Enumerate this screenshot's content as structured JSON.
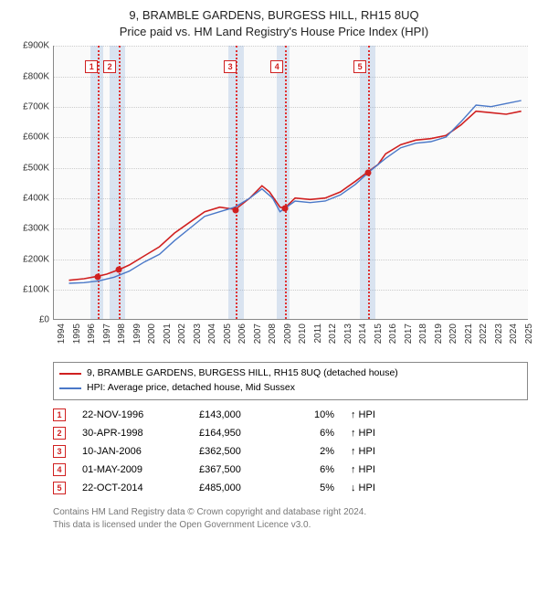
{
  "title_line1": "9, BRAMBLE GARDENS, BURGESS HILL, RH15 8UQ",
  "title_line2": "Price paid vs. HM Land Registry's House Price Index (HPI)",
  "chart": {
    "type": "line",
    "x_min": 1994,
    "x_max": 2025.5,
    "y_min": 0,
    "y_max": 900000,
    "y_ticks": [
      0,
      100000,
      200000,
      300000,
      400000,
      500000,
      600000,
      700000,
      800000,
      900000
    ],
    "y_tick_labels": [
      "£0",
      "£100K",
      "£200K",
      "£300K",
      "£400K",
      "£500K",
      "£600K",
      "£700K",
      "£800K",
      "£900K"
    ],
    "x_ticks": [
      1994,
      1995,
      1996,
      1997,
      1998,
      1999,
      2000,
      2001,
      2002,
      2003,
      2004,
      2005,
      2006,
      2007,
      2008,
      2009,
      2010,
      2011,
      2012,
      2013,
      2014,
      2015,
      2016,
      2017,
      2018,
      2019,
      2020,
      2021,
      2022,
      2023,
      2024,
      2025
    ],
    "background_color": "#fafafa",
    "grid_color": "#cccccc",
    "shaded_bands": [
      {
        "start": 1996.4,
        "end": 1997.3
      },
      {
        "start": 1997.7,
        "end": 1998.7
      },
      {
        "start": 2005.6,
        "end": 2006.6
      },
      {
        "start": 2008.8,
        "end": 2009.6
      },
      {
        "start": 2014.3,
        "end": 2015.3
      }
    ],
    "sale_vlines": [
      1996.9,
      1998.33,
      2006.03,
      2009.33,
      2014.81
    ],
    "marker_boxes": [
      {
        "n": "1",
        "x": 1996.5
      },
      {
        "n": "2",
        "x": 1997.7
      },
      {
        "n": "3",
        "x": 2005.7
      },
      {
        "n": "4",
        "x": 2008.8
      },
      {
        "n": "5",
        "x": 2014.3
      }
    ],
    "series": [
      {
        "name": "price_paid",
        "color": "#d02020",
        "width": 1.6,
        "points": [
          [
            1995,
            130000
          ],
          [
            1996,
            135000
          ],
          [
            1996.9,
            143000
          ],
          [
            1997.5,
            150000
          ],
          [
            1998.33,
            164950
          ],
          [
            1999,
            180000
          ],
          [
            2000,
            210000
          ],
          [
            2001,
            240000
          ],
          [
            2002,
            285000
          ],
          [
            2003,
            320000
          ],
          [
            2004,
            355000
          ],
          [
            2005,
            370000
          ],
          [
            2006.03,
            362500
          ],
          [
            2007,
            400000
          ],
          [
            2007.8,
            440000
          ],
          [
            2008.3,
            420000
          ],
          [
            2009,
            370000
          ],
          [
            2009.33,
            367500
          ],
          [
            2010,
            400000
          ],
          [
            2011,
            395000
          ],
          [
            2012,
            400000
          ],
          [
            2013,
            420000
          ],
          [
            2014,
            455000
          ],
          [
            2014.81,
            485000
          ],
          [
            2015.5,
            510000
          ],
          [
            2016,
            545000
          ],
          [
            2017,
            575000
          ],
          [
            2018,
            590000
          ],
          [
            2019,
            595000
          ],
          [
            2020,
            605000
          ],
          [
            2021,
            640000
          ],
          [
            2022,
            685000
          ],
          [
            2023,
            680000
          ],
          [
            2024,
            675000
          ],
          [
            2025,
            685000
          ]
        ]
      },
      {
        "name": "hpi",
        "color": "#4a78c8",
        "width": 1.4,
        "points": [
          [
            1995,
            120000
          ],
          [
            1996,
            122000
          ],
          [
            1997,
            128000
          ],
          [
            1998,
            140000
          ],
          [
            1999,
            160000
          ],
          [
            2000,
            190000
          ],
          [
            2001,
            215000
          ],
          [
            2002,
            260000
          ],
          [
            2003,
            300000
          ],
          [
            2004,
            340000
          ],
          [
            2005,
            355000
          ],
          [
            2006,
            370000
          ],
          [
            2007,
            400000
          ],
          [
            2007.8,
            430000
          ],
          [
            2008.5,
            400000
          ],
          [
            2009,
            355000
          ],
          [
            2010,
            390000
          ],
          [
            2011,
            385000
          ],
          [
            2012,
            390000
          ],
          [
            2013,
            410000
          ],
          [
            2014,
            445000
          ],
          [
            2015,
            490000
          ],
          [
            2016,
            530000
          ],
          [
            2017,
            565000
          ],
          [
            2018,
            580000
          ],
          [
            2019,
            585000
          ],
          [
            2020,
            600000
          ],
          [
            2021,
            650000
          ],
          [
            2022,
            705000
          ],
          [
            2023,
            700000
          ],
          [
            2024,
            710000
          ],
          [
            2025,
            720000
          ]
        ]
      }
    ],
    "sale_points": [
      {
        "x": 1996.9,
        "y": 143000
      },
      {
        "x": 1998.33,
        "y": 164950
      },
      {
        "x": 2006.03,
        "y": 362500
      },
      {
        "x": 2009.33,
        "y": 367500
      },
      {
        "x": 2014.81,
        "y": 485000
      }
    ]
  },
  "legend": {
    "items": [
      {
        "color": "#d02020",
        "label": "9, BRAMBLE GARDENS, BURGESS HILL, RH15 8UQ (detached house)"
      },
      {
        "color": "#4a78c8",
        "label": "HPI: Average price, detached house, Mid Sussex"
      }
    ]
  },
  "sales_table": {
    "rows": [
      {
        "n": "1",
        "date": "22-NOV-1996",
        "price": "£143,000",
        "delta": "10%",
        "dir": "↑ HPI"
      },
      {
        "n": "2",
        "date": "30-APR-1998",
        "price": "£164,950",
        "delta": "6%",
        "dir": "↑ HPI"
      },
      {
        "n": "3",
        "date": "10-JAN-2006",
        "price": "£362,500",
        "delta": "2%",
        "dir": "↑ HPI"
      },
      {
        "n": "4",
        "date": "01-MAY-2009",
        "price": "£367,500",
        "delta": "6%",
        "dir": "↑ HPI"
      },
      {
        "n": "5",
        "date": "22-OCT-2014",
        "price": "£485,000",
        "delta": "5%",
        "dir": "↓ HPI"
      }
    ]
  },
  "footer": {
    "line1": "Contains HM Land Registry data © Crown copyright and database right 2024.",
    "line2": "This data is licensed under the Open Government Licence v3.0."
  }
}
